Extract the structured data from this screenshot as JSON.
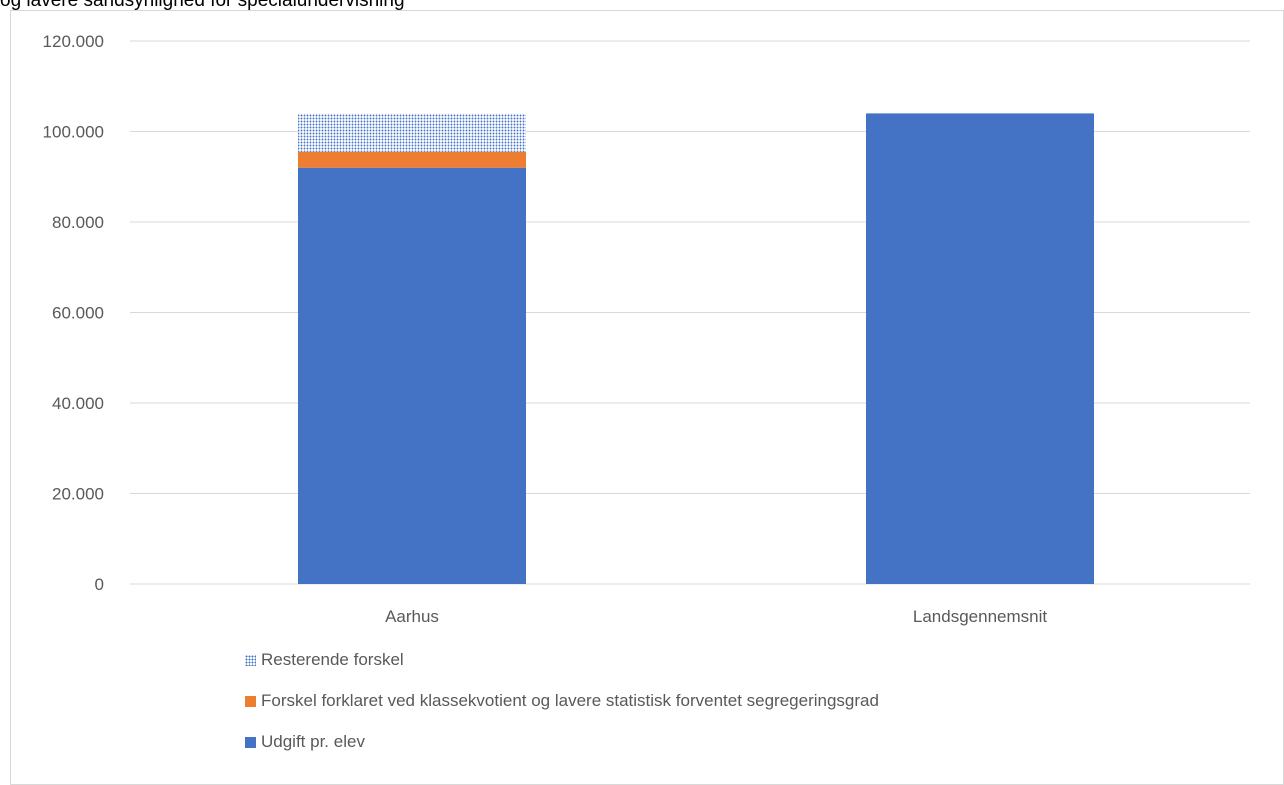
{
  "caption": "og lavere sandsynlighed for specialundervisning",
  "chart_data": {
    "type": "bar",
    "stacked": true,
    "categories": [
      "Aarhus",
      "Landsgennemsnit"
    ],
    "series": [
      {
        "name": "Udgift pr. elev",
        "values": [
          92000,
          104000
        ],
        "color": "#4472c4",
        "pattern": "solid"
      },
      {
        "name": "Forskel forklaret ved klassekvotient og lavere statistisk forventet segregeringsgrad",
        "values": [
          3500,
          0
        ],
        "color": "#ed7d31",
        "pattern": "solid"
      },
      {
        "name": "Resterende forskel",
        "values": [
          8500,
          0
        ],
        "color": "#4472c4",
        "pattern": "dotted"
      }
    ],
    "ylim": [
      0,
      120000
    ],
    "yticks": [
      0,
      20000,
      40000,
      60000,
      80000,
      100000,
      120000
    ],
    "ytick_labels": [
      "0",
      "20.000",
      "40.000",
      "60.000",
      "80.000",
      "100.000",
      "120.000"
    ],
    "grid": true,
    "legend_position": "bottom",
    "legend_order": [
      2,
      1,
      0
    ]
  }
}
